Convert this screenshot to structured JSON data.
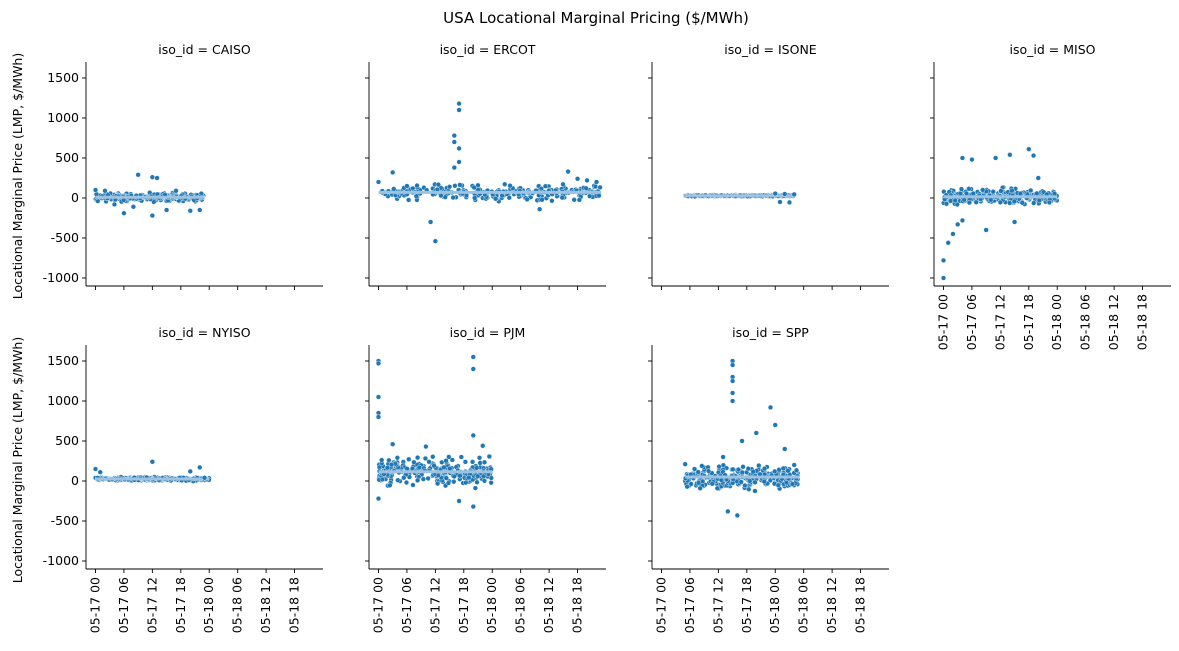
{
  "chart_data": {
    "type": "scatter",
    "title": "USA Locational Marginal Pricing ($/MWh)",
    "ylabel": "Locational Marginal Price (LMP, $/MWh)",
    "xlabel": "",
    "ylim": [
      -1100,
      1700
    ],
    "xlim": [
      "05-16 22:00",
      "05-19 00:00"
    ],
    "yticks": [
      -1000,
      -500,
      0,
      500,
      1000,
      1500
    ],
    "xticks": [
      "05-17 00",
      "05-17 06",
      "05-17 12",
      "05-17 18",
      "05-18 00",
      "05-18 06",
      "05-18 12",
      "05-18 18"
    ],
    "grid": false,
    "color": "#1f77b4",
    "panels": [
      {
        "title": "iso_id = CAISO",
        "x_range": [
          "05-17 00",
          "05-17 23"
        ],
        "band": [
          -60,
          80
        ],
        "points": [
          [
            "05-17 00",
            100
          ],
          [
            "05-17 02",
            90
          ],
          [
            "05-17 04",
            -80
          ],
          [
            "05-17 06",
            -190
          ],
          [
            "05-17 08",
            -110
          ],
          [
            "05-17 09",
            290
          ],
          [
            "05-17 12",
            260
          ],
          [
            "05-17 12",
            -220
          ],
          [
            "05-17 13",
            250
          ],
          [
            "05-17 15",
            -150
          ],
          [
            "05-17 17",
            90
          ],
          [
            "05-17 20",
            -160
          ],
          [
            "05-17 22",
            -150
          ]
        ]
      },
      {
        "title": "iso_id = ERCOT",
        "x_range": [
          "05-17 00",
          "05-18 23"
        ],
        "band": [
          -60,
          200
        ],
        "points": [
          [
            "05-17 00",
            200
          ],
          [
            "05-17 03",
            320
          ],
          [
            "05-17 06",
            150
          ],
          [
            "05-17 11",
            -300
          ],
          [
            "05-17 12",
            -540
          ],
          [
            "05-17 15",
            140
          ],
          [
            "05-17 16",
            780
          ],
          [
            "05-17 16",
            700
          ],
          [
            "05-17 17",
            1180
          ],
          [
            "05-17 17",
            1100
          ],
          [
            "05-17 17",
            620
          ],
          [
            "05-17 17",
            450
          ],
          [
            "05-17 16",
            380
          ],
          [
            "05-18 10",
            -140
          ],
          [
            "05-18 16",
            330
          ],
          [
            "05-18 18",
            240
          ],
          [
            "05-18 20",
            220
          ],
          [
            "05-18 22",
            200
          ]
        ]
      },
      {
        "title": "iso_id = ISONE",
        "x_range": [
          "05-17 05",
          "05-18 04"
        ],
        "band": [
          15,
          40
        ],
        "points": [
          [
            "05-18 00",
            55
          ],
          [
            "05-18 01",
            -50
          ],
          [
            "05-18 02",
            50
          ],
          [
            "05-18 03",
            -55
          ],
          [
            "05-18 04",
            45
          ]
        ]
      },
      {
        "title": "iso_id = MISO",
        "x_range": [
          "05-17 00",
          "05-18 00"
        ],
        "band": [
          -120,
          150
        ],
        "points": [
          [
            "05-17 00",
            -1000
          ],
          [
            "05-17 00",
            -780
          ],
          [
            "05-17 01",
            -560
          ],
          [
            "05-17 02",
            -450
          ],
          [
            "05-17 03",
            -330
          ],
          [
            "05-17 04",
            -280
          ],
          [
            "05-17 04",
            500
          ],
          [
            "05-17 06",
            480
          ],
          [
            "05-17 09",
            -400
          ],
          [
            "05-17 11",
            500
          ],
          [
            "05-17 14",
            540
          ],
          [
            "05-17 15",
            -300
          ],
          [
            "05-17 18",
            610
          ],
          [
            "05-17 19",
            530
          ],
          [
            "05-17 20",
            250
          ]
        ]
      },
      {
        "title": "iso_id = NYISO",
        "x_range": [
          "05-17 00",
          "05-18 00"
        ],
        "band": [
          -10,
          60
        ],
        "points": [
          [
            "05-17 00",
            150
          ],
          [
            "05-17 01",
            110
          ],
          [
            "05-17 12",
            240
          ],
          [
            "05-17 20",
            120
          ],
          [
            "05-17 22",
            170
          ],
          [
            "05-17 23",
            40
          ]
        ]
      },
      {
        "title": "iso_id = PJM",
        "x_range": [
          "05-17 00",
          "05-18 00"
        ],
        "band": [
          -120,
          350
        ],
        "points": [
          [
            "05-17 00",
            1500
          ],
          [
            "05-17 00",
            1470
          ],
          [
            "05-17 00",
            1050
          ],
          [
            "05-17 00",
            850
          ],
          [
            "05-17 00",
            800
          ],
          [
            "05-17 00",
            -220
          ],
          [
            "05-17 03",
            460
          ],
          [
            "05-17 10",
            430
          ],
          [
            "05-17 17",
            -250
          ],
          [
            "05-17 20",
            1550
          ],
          [
            "05-17 20",
            1400
          ],
          [
            "05-17 20",
            570
          ],
          [
            "05-17 20",
            -320
          ],
          [
            "05-17 22",
            440
          ]
        ]
      },
      {
        "title": "iso_id = SPP",
        "x_range": [
          "05-17 05",
          "05-18 05"
        ],
        "band": [
          -150,
          250
        ],
        "points": [
          [
            "05-17 05",
            210
          ],
          [
            "05-17 13",
            300
          ],
          [
            "05-17 14",
            -380
          ],
          [
            "05-17 15",
            1500
          ],
          [
            "05-17 15",
            1450
          ],
          [
            "05-17 15",
            1300
          ],
          [
            "05-17 15",
            1250
          ],
          [
            "05-17 15",
            1100
          ],
          [
            "05-17 15",
            1000
          ],
          [
            "05-17 16",
            -430
          ],
          [
            "05-17 17",
            500
          ],
          [
            "05-17 20",
            600
          ],
          [
            "05-17 23",
            920
          ],
          [
            "05-18 00",
            700
          ],
          [
            "05-18 02",
            400
          ],
          [
            "05-18 04",
            200
          ]
        ]
      }
    ]
  }
}
